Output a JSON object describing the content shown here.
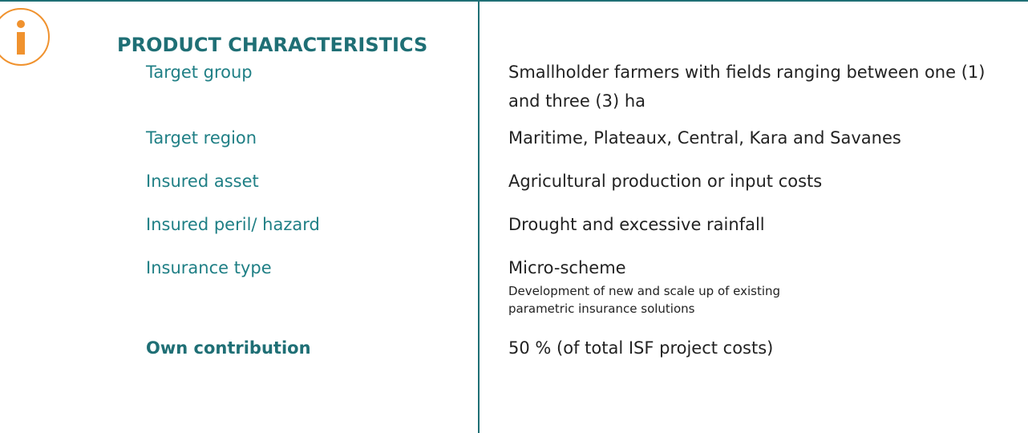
{
  "header": {
    "title": "PRODUCT CHARACTERISTICS"
  },
  "rows": [
    {
      "label": "Target group",
      "value": "Smallholder farmers with fields ranging between one (1) and three (3) ha"
    },
    {
      "label": "Target region",
      "value": "Maritime, Plateaux, Central, Kara and Savanes"
    },
    {
      "label": "Insured asset",
      "value": "Agricultural production or input costs"
    },
    {
      "label": "Insured peril/ hazard",
      "value": "Drought and excessive rainfall"
    },
    {
      "label": "Insurance type",
      "value": "Micro-scheme",
      "note": "Development of new and scale up of existing parametric insurance solutions"
    },
    {
      "label": "Own contribution",
      "value": "50 % (of total ISF project costs)"
    }
  ]
}
